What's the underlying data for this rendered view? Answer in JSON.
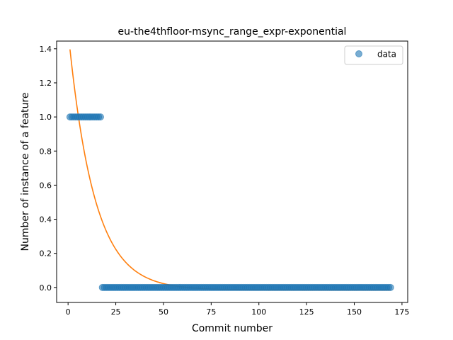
{
  "chart_data": {
    "type": "scatter",
    "title": "eu-the4thfloor-msync_range_expr-exponential",
    "xlabel": "Commit number",
    "ylabel": "Number of instance of a feature",
    "xlim": [
      -6,
      178
    ],
    "ylim": [
      -0.088,
      1.445
    ],
    "xticks": [
      0,
      25,
      50,
      75,
      100,
      125,
      150,
      175
    ],
    "yticks": [
      0.0,
      0.2,
      0.4,
      0.6,
      0.8,
      1.0,
      1.2,
      1.4
    ],
    "xtick_labels": [
      "0",
      "25",
      "50",
      "75",
      "100",
      "125",
      "150",
      "175"
    ],
    "ytick_labels": [
      "0.0",
      "0.2",
      "0.4",
      "0.6",
      "0.8",
      "1.0",
      "1.2",
      "1.4"
    ],
    "grid": false,
    "legend": {
      "position": "top-right",
      "entries": [
        "data"
      ]
    },
    "colors": {
      "data": "#1f77b4",
      "fit": "#ff7f0e"
    },
    "series": [
      {
        "name": "data",
        "kind": "scatter",
        "groups": [
          {
            "x_start": 1,
            "x_end": 17,
            "y": 1.0
          },
          {
            "x_start": 18,
            "x_end": 169,
            "y": 0.0
          }
        ]
      },
      {
        "kind": "line",
        "function": "exponential",
        "x_range": [
          1,
          169
        ],
        "a": 1.52,
        "b": 0.074,
        "c": -0.015
      }
    ]
  }
}
